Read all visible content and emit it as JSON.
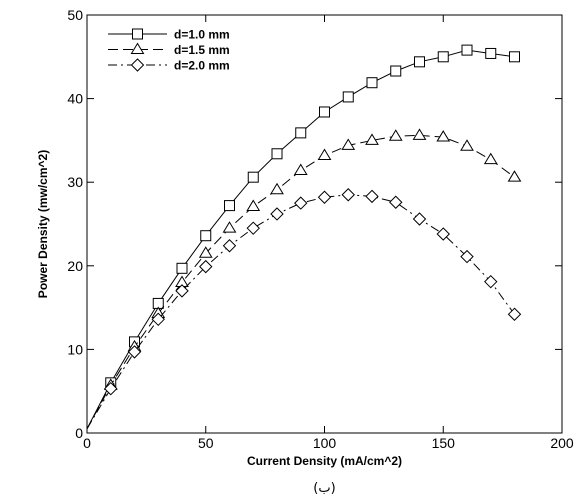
{
  "chart_data": {
    "type": "line",
    "xlabel": "Current Density (mA/cm^2)",
    "ylabel": "Power Density (mw/cm^2)",
    "xlim": [
      0,
      200
    ],
    "ylim": [
      0,
      50
    ],
    "x_ticks": [
      0,
      50,
      100,
      150,
      200
    ],
    "y_ticks": [
      0,
      10,
      20,
      30,
      40,
      50
    ],
    "grid": false,
    "legend_position": "top-left",
    "caption": "(ب)",
    "series": [
      {
        "name": "d=1.0 mm",
        "marker": "square",
        "dash": "solid",
        "x": [
          0,
          10,
          20,
          30,
          40,
          50,
          60,
          70,
          80,
          90,
          100,
          110,
          120,
          130,
          140,
          150,
          160,
          170,
          180
        ],
        "y": [
          0.5,
          6.0,
          10.9,
          15.5,
          19.7,
          23.6,
          27.2,
          30.6,
          33.4,
          35.9,
          38.4,
          40.2,
          41.9,
          43.3,
          44.4,
          45.0,
          45.8,
          45.4,
          45.0
        ]
      },
      {
        "name": "d=1.5 mm",
        "marker": "triangle",
        "dash": "dash",
        "x": [
          0,
          10,
          20,
          30,
          40,
          50,
          60,
          70,
          80,
          90,
          100,
          110,
          120,
          130,
          140,
          150,
          160,
          170,
          180
        ],
        "y": [
          0.5,
          5.7,
          10.3,
          14.3,
          18.0,
          21.5,
          24.5,
          27.1,
          29.1,
          31.4,
          33.2,
          34.4,
          35.0,
          35.5,
          35.6,
          35.4,
          34.3,
          32.7,
          30.6
        ]
      },
      {
        "name": "d=2.0 mm",
        "marker": "diamond",
        "dash": "dashdot",
        "x": [
          0,
          10,
          20,
          30,
          40,
          50,
          60,
          70,
          80,
          90,
          100,
          110,
          120,
          130,
          140,
          150,
          160,
          170,
          180
        ],
        "y": [
          0.5,
          5.3,
          9.7,
          13.6,
          17.0,
          19.9,
          22.4,
          24.5,
          26.2,
          27.5,
          28.2,
          28.5,
          28.3,
          27.6,
          25.6,
          23.8,
          21.1,
          18.1,
          14.2
        ]
      }
    ]
  }
}
